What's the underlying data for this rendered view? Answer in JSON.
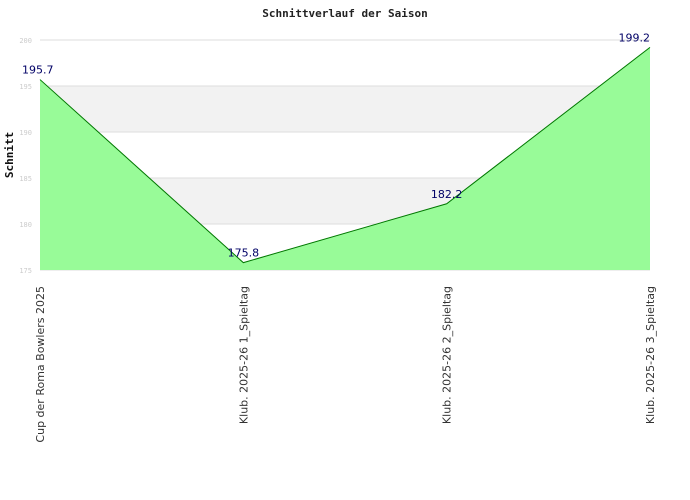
{
  "chart_data": {
    "type": "area",
    "title": "Schnittverlauf der Saison",
    "ylabel": "Schnitt",
    "xlabel": "",
    "categories": [
      "Cup der Roma Bowlers 2025",
      "Klub. 2025-26  1_Spieltag",
      "Klub. 2025-26  2_Spieltag",
      "Klub. 2025-26  3_Spieltag"
    ],
    "values": [
      195.7,
      175.8,
      182.2,
      199.2
    ],
    "data_labels": [
      "195.7",
      "175.8",
      "182.2",
      "199.2"
    ],
    "ylim": [
      175,
      200
    ],
    "yticks": [
      "175",
      "180",
      "185",
      "190",
      "195",
      "200"
    ],
    "grid": true,
    "colors": {
      "fill": "#98fb98",
      "line": "#007700",
      "band": "#f2f2f2",
      "grid": "#dddddd",
      "label": "#000066"
    }
  }
}
